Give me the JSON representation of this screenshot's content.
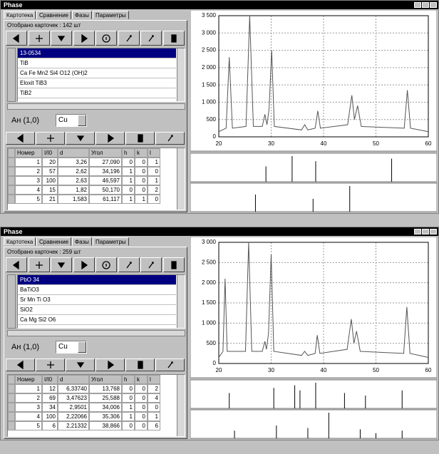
{
  "windows": [
    {
      "title": "Phase",
      "tabs": [
        "Картотека",
        "Сравнение",
        "Фазы",
        "Параметры"
      ],
      "cards_label": "Отобрано карточек : 142 шт",
      "list": [
        "13-0534",
        "TiB",
        "Ca Fe Mn2 Si4 O12 (OH)2",
        "Eloxit TiB3",
        "TiB2"
      ],
      "analysis_label": "Ан (1,0)",
      "anode": "Cu",
      "table": {
        "header": [
          "Номер",
          "I/I0",
          "d",
          "Угол",
          "h",
          "k",
          "l"
        ],
        "rows": [
          [
            "1",
            "20",
            "3,26",
            "27,090",
            "0",
            "0",
            "1"
          ],
          [
            "2",
            "57",
            "2,62",
            "34,196",
            "1",
            "0",
            "0"
          ],
          [
            "3",
            "100",
            "2,63",
            "46,597",
            "1",
            "0",
            "1"
          ],
          [
            "4",
            "15",
            "1,82",
            "50,170",
            "0",
            "0",
            "2"
          ],
          [
            "5",
            "21",
            "1,583",
            "61,117",
            "1",
            "1",
            "0"
          ]
        ]
      },
      "chart": {
        "type": "line",
        "x": [
          20,
          21.4,
          22,
          22.6,
          25.2,
          25.9,
          26.6,
          28.3,
          28.8,
          29.2,
          29.6,
          30.1,
          30.6,
          35.8,
          36.4,
          37,
          38.4,
          38.9,
          39.4,
          44.6,
          45.4,
          45.9,
          46.5,
          47.2,
          55.4,
          56,
          56.6,
          60
        ],
        "values": [
          150,
          250,
          2300,
          250,
          300,
          3500,
          300,
          300,
          650,
          350,
          800,
          2500,
          300,
          200,
          350,
          200,
          250,
          750,
          250,
          350,
          1200,
          500,
          900,
          300,
          250,
          1350,
          250,
          150
        ],
        "xlim": [
          20,
          60
        ],
        "ylim": [
          0,
          3500
        ],
        "xticks": [
          20,
          30,
          40,
          50,
          60
        ],
        "yticks": [
          0,
          500,
          {
            "value": 1000,
            "label": "1 000"
          },
          {
            "value": 1500,
            "label": "1 500"
          },
          {
            "value": 2000,
            "label": "2 000"
          },
          {
            "value": 2500,
            "label": "2 500"
          },
          {
            "value": 3000,
            "label": "3 000"
          },
          {
            "value": 3500,
            "label": "3 500"
          }
        ],
        "patterns": [
          {
            "x": [
              29,
              34,
              38.5,
              53
            ],
            "values": [
              60,
              100,
              80,
              90
            ]
          },
          {
            "x": [
              27,
              38,
              45
            ],
            "values": [
              20,
              15,
              30
            ]
          }
        ]
      }
    },
    {
      "title": "Phase",
      "tabs": [
        "Картотека",
        "Сравнение",
        "Фазы",
        "Параметры"
      ],
      "cards_label": "Отобрано карточек : 259 шт",
      "list": [
        "PbO 34",
        "BaTiO3",
        "Sr Mn Ti O3",
        "SiO2",
        "Ca Mg Si2 O6"
      ],
      "analysis_label": "Ан (1,0)",
      "anode": "Cu",
      "table": {
        "header": [
          "Номер",
          "I/I0",
          "d",
          "Угол",
          "h",
          "k",
          "l"
        ],
        "rows": [
          [
            "1",
            "12",
            "6,33740",
            "13,768",
            "0",
            "0",
            "2"
          ],
          [
            "2",
            "69",
            "3,47623",
            "25,588",
            "0",
            "0",
            "4"
          ],
          [
            "3",
            "34",
            "2,9501",
            "34,006",
            "1",
            "0",
            "0"
          ],
          [
            "4",
            "100",
            "2,22066",
            "35,306",
            "1",
            "0",
            "1"
          ],
          [
            "5",
            "6",
            "2,21332",
            "38,866",
            "0",
            "0",
            "6"
          ]
        ]
      },
      "chart": {
        "type": "line",
        "x": [
          20,
          20.8,
          21.2,
          21.6,
          25.1,
          25.7,
          26.3,
          28.3,
          28.8,
          29.1,
          29.5,
          30,
          30.5,
          35.8,
          36.4,
          37,
          38.4,
          38.8,
          39.3,
          44.5,
          45.3,
          45.8,
          46.3,
          47,
          55.3,
          55.9,
          56.5,
          60
        ],
        "values": [
          150,
          300,
          2100,
          300,
          300,
          3000,
          300,
          300,
          550,
          350,
          750,
          2700,
          300,
          200,
          300,
          200,
          250,
          700,
          250,
          350,
          1100,
          500,
          800,
          300,
          250,
          1400,
          250,
          150
        ],
        "xlim": [
          20,
          60
        ],
        "ylim": [
          0,
          3000
        ],
        "xticks": [
          20,
          30,
          40,
          50,
          60
        ],
        "yticks": [
          0,
          500,
          {
            "value": 1000,
            "label": "1 000"
          },
          {
            "value": 1500,
            "label": "1 500"
          },
          {
            "value": 2000,
            "label": "2 000"
          },
          {
            "value": 2500,
            "label": "2 500"
          },
          {
            "value": 3000,
            "label": "3 000"
          }
        ],
        "patterns": [
          {
            "x": [
              22,
              30.5,
              34.5,
              35.5,
              38.5,
              44,
              48,
              55
            ],
            "values": [
              60,
              80,
              90,
              70,
              100,
              60,
              50,
              70
            ]
          },
          {
            "x": [
              23,
              31,
              37,
              41,
              47,
              50,
              55
            ],
            "values": [
              30,
              50,
              40,
              100,
              35,
              20,
              30
            ]
          }
        ]
      }
    }
  ]
}
